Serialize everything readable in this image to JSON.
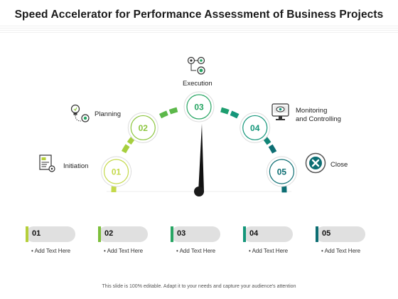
{
  "title": "Speed Accelerator for Performance Assessment of Business Projects",
  "stages": [
    {
      "number": "01",
      "label": "Initiation",
      "color": "#c4d94a",
      "icon": "document-gear-icon"
    },
    {
      "number": "02",
      "label": "Planning",
      "color": "#8cc63f",
      "icon": "lightbulb-gear-icon"
    },
    {
      "number": "03",
      "label": "Execution",
      "color": "#27a563",
      "icon": "gears-flow-icon"
    },
    {
      "number": "04",
      "label": "Monitoring\nand Controlling",
      "color": "#14967a",
      "icon": "monitor-eye-icon"
    },
    {
      "number": "05",
      "label": "Close",
      "color": "#0d6e73",
      "icon": "close-x-icon"
    }
  ],
  "cards": [
    {
      "number": "01",
      "text": "• Add Text Here",
      "color": "#b5cf3a"
    },
    {
      "number": "02",
      "text": "• Add Text Here",
      "color": "#7cbf3a"
    },
    {
      "number": "03",
      "text": "• Add Text Here",
      "color": "#27a563"
    },
    {
      "number": "04",
      "text": "• Add Text Here",
      "color": "#14967a"
    },
    {
      "number": "05",
      "text": "• Add Text Here",
      "color": "#0d6e73"
    }
  ],
  "footer": "This slide is 100% editable. Adapt it to your needs and capture your audience's attention"
}
